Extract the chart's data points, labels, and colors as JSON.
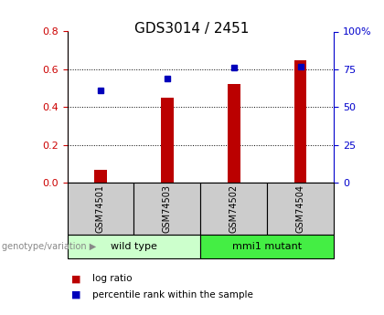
{
  "title": "GDS3014 / 2451",
  "samples": [
    "GSM74501",
    "GSM74503",
    "GSM74502",
    "GSM74504"
  ],
  "log_ratio": [
    0.07,
    0.45,
    0.52,
    0.65
  ],
  "percentile_rank": [
    61,
    69,
    76,
    77
  ],
  "left_ylim": [
    0,
    0.8
  ],
  "left_yticks": [
    0,
    0.2,
    0.4,
    0.6,
    0.8
  ],
  "right_ylim": [
    0,
    100
  ],
  "right_yticks": [
    0,
    25,
    50,
    75,
    100
  ],
  "right_yticklabels": [
    "0",
    "25",
    "50",
    "75",
    "100%"
  ],
  "bar_color": "#bb0000",
  "marker_color": "#0000bb",
  "groups": [
    {
      "label": "wild type",
      "indices": [
        0,
        1
      ],
      "color": "#ccffcc"
    },
    {
      "label": "mmi1 mutant",
      "indices": [
        2,
        3
      ],
      "color": "#44ee44"
    }
  ],
  "genotype_label": "genotype/variation",
  "legend_bar_label": "log ratio",
  "legend_marker_label": "percentile rank within the sample",
  "title_color": "#000000",
  "left_axis_color": "#cc0000",
  "right_axis_color": "#0000cc",
  "grid_color": "#000000",
  "sample_box_color": "#cccccc",
  "fig_width": 4.2,
  "fig_height": 3.45,
  "dpi": 100
}
